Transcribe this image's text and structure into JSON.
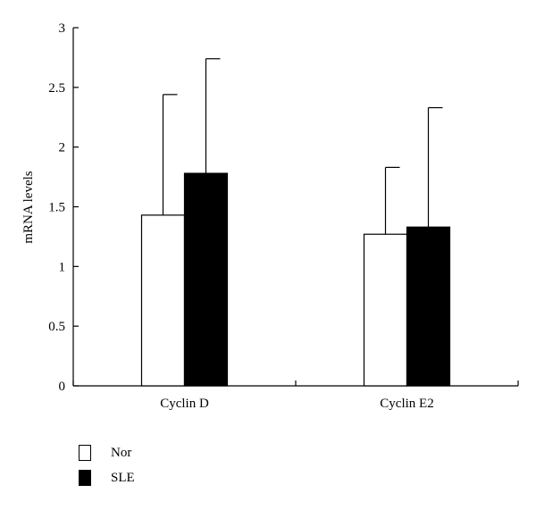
{
  "chart_data": {
    "type": "bar",
    "title": "",
    "xlabel": "",
    "ylabel": "mRNA levels",
    "ylim": [
      0,
      3
    ],
    "yticks": [
      "0",
      "0.5",
      "1",
      "1.5",
      "2",
      "2.5",
      "3"
    ],
    "ytick_values": [
      0,
      0.5,
      1,
      1.5,
      2,
      2.5,
      3
    ],
    "categories": [
      "Cyclin D",
      "Cyclin E2"
    ],
    "series": [
      {
        "name": "Nor",
        "values": [
          1.43,
          1.27
        ],
        "error": [
          1.01,
          0.56
        ],
        "color": "#ffffff"
      },
      {
        "name": "SLE",
        "values": [
          1.78,
          1.33
        ],
        "error": [
          0.96,
          1.0
        ],
        "color": "#000000"
      }
    ],
    "grid": false,
    "legend_position": "bottom-left"
  }
}
